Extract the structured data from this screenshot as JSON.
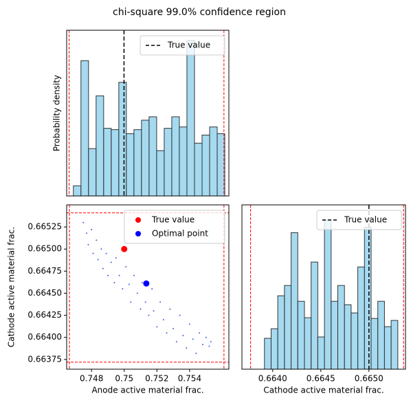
{
  "title": "chi-square 99.0% confidence region",
  "chart_data": [
    {
      "type": "histogram",
      "ylabel": "Probability density",
      "bins": [
        0.74691,
        0.747372,
        0.747834,
        0.748296,
        0.748758,
        0.74922,
        0.749682,
        0.750144,
        0.750606,
        0.751068,
        0.75153,
        0.751992,
        0.752454,
        0.752916,
        0.753378,
        0.75384,
        0.754302,
        0.754764,
        0.755226,
        0.755688,
        0.75615
      ],
      "values": [
        15,
        200,
        70,
        148,
        100,
        98,
        168,
        92,
        98,
        112,
        117,
        67,
        100,
        117,
        102,
        230,
        78,
        90,
        102,
        92
      ],
      "color": "#87ceeb",
      "edgecolor": "#333333",
      "xlim": [
        0.7465,
        0.7564
      ],
      "ylim": [
        0,
        245
      ],
      "bounds": [
        0.74665,
        0.7561
      ],
      "bounds_color": "#ff0000",
      "lines": [
        {
          "name": "True value",
          "color": "#000000",
          "x": 0.75
        }
      ],
      "legend": "upper right"
    },
    {
      "type": "scatter",
      "xlabel": "Anode active material frac.",
      "ylabel": "Cathode active material frac.",
      "samples": {
        "color": "#3a63d8",
        "x": [
          0.7475,
          0.7477,
          0.7478,
          0.748,
          0.7481,
          0.7483,
          0.7484,
          0.7486,
          0.7487,
          0.7489,
          0.749,
          0.7492,
          0.7494,
          0.7495,
          0.7497,
          0.7499,
          0.7501,
          0.7503,
          0.7504,
          0.7506,
          0.7508,
          0.751,
          0.7511,
          0.7513,
          0.7515,
          0.7517,
          0.7518,
          0.752,
          0.7522,
          0.7524,
          0.7526,
          0.7528,
          0.753,
          0.7532,
          0.7534,
          0.7536,
          0.7538,
          0.754,
          0.7542,
          0.7544,
          0.7546,
          0.7548,
          0.755,
          0.7552,
          0.7553
        ],
        "y": [
          0.6653,
          0.66518,
          0.66505,
          0.66522,
          0.66495,
          0.6651,
          0.66488,
          0.665,
          0.66478,
          0.66495,
          0.6647,
          0.66485,
          0.66462,
          0.6649,
          0.6647,
          0.66455,
          0.6648,
          0.6646,
          0.6644,
          0.6647,
          0.6645,
          0.66432,
          0.66462,
          0.6644,
          0.66425,
          0.66455,
          0.6643,
          0.66412,
          0.6644,
          0.6642,
          0.66405,
          0.66432,
          0.6641,
          0.66395,
          0.66425,
          0.66402,
          0.66388,
          0.66415,
          0.66398,
          0.66382,
          0.66405,
          0.66392,
          0.664,
          0.6639,
          0.66395
        ]
      },
      "series": [
        {
          "name": "True value",
          "color": "#ff0000",
          "x": [
            0.75
          ],
          "y": [
            0.665
          ]
        },
        {
          "name": "Optimal point",
          "color": "#0000ff",
          "x": [
            0.75135
          ],
          "y": [
            0.66461
          ]
        }
      ],
      "xlim": [
        0.74648,
        0.7564
      ],
      "ylim": [
        0.66364,
        0.6655
      ],
      "xticks": [
        0.748,
        0.75,
        0.752,
        0.754
      ],
      "yticks": [
        {
          "value": 0.66375,
          "label": "0.66375"
        },
        {
          "value": 0.664,
          "label": "0.66400"
        },
        {
          "value": 0.66425,
          "label": "0.66425"
        },
        {
          "value": 0.6645,
          "label": "0.66450"
        },
        {
          "value": 0.66475,
          "label": "0.66475"
        },
        {
          "value": 0.665,
          "label": "0.66500"
        },
        {
          "value": 0.66525,
          "label": "0.66525"
        }
      ],
      "xbounds": [
        0.74665,
        0.7561
      ],
      "ybounds": [
        0.66372,
        0.66541
      ],
      "bounds_color": "#ff0000",
      "legend": "upper right"
    },
    {
      "type": "histogram",
      "xlabel": "Cathode active material frac.",
      "bins": [
        0.663914,
        0.6639833,
        0.6640526,
        0.6641219,
        0.6641912,
        0.6642605,
        0.6643298,
        0.6643991,
        0.6644684,
        0.6645377,
        0.664607,
        0.6646763,
        0.6647456,
        0.6648149,
        0.6648842,
        0.6649535,
        0.6650228,
        0.6650921,
        0.6651614,
        0.6652307,
        0.6653
      ],
      "values": [
        297,
        389,
        706,
        805,
        1313,
        653,
        495,
        1030,
        310,
        1432,
        653,
        805,
        620,
        541,
        983,
        1366,
        488,
        653,
        409,
        469
      ],
      "color": "#87ceeb",
      "edgecolor": "#333333",
      "xlim": [
        0.66368,
        0.66538
      ],
      "ylim": [
        0,
        1580
      ],
      "xticks": [
        {
          "value": 0.664,
          "label": "0.6640"
        },
        {
          "value": 0.6645,
          "label": "0.6645"
        },
        {
          "value": 0.665,
          "label": "0.6650"
        }
      ],
      "bounds": [
        0.66377,
        0.66536
      ],
      "bounds_color": "#ff0000",
      "lines": [
        {
          "name": "True value",
          "color": "#000000",
          "x": 0.665
        }
      ],
      "legend": "upper right"
    }
  ]
}
